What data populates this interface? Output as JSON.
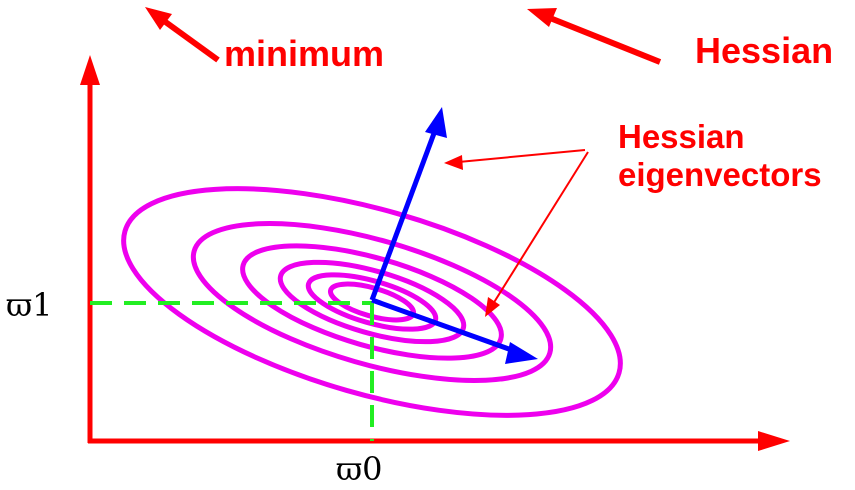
{
  "labels": {
    "minimum": "minimum",
    "hessian": "Hessian",
    "eigen_line1": "Hessian",
    "eigen_line2": "eigenvectors",
    "w1": "ϖ1",
    "w0": "ϖ0"
  },
  "colors": {
    "axis": "#ff0000",
    "contour": "#ee00ee",
    "eigenvector": "#0000ff",
    "guide": "#22ee22",
    "text": "#ff0000"
  },
  "icons": {
    "top_left_arrow": "arrow-up-left-icon",
    "top_middle_arrow": "arrow-up-left-icon"
  }
}
